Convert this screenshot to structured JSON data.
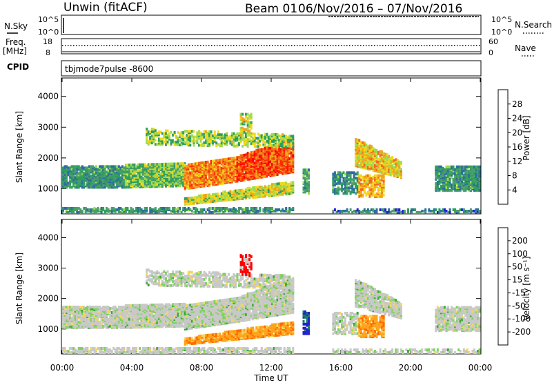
{
  "header": {
    "title": "Unwin (fitACF)",
    "beam": "Beam 01",
    "date_range": "06/Nov/2016 – 07/Nov/2016"
  },
  "strips": {
    "nsky_label": "N.Sky",
    "nsky_ticks": [
      "10^5",
      "10^0"
    ],
    "nsky_right_ticks": [
      "10^5",
      "10^0"
    ],
    "nsearch_label": "N.Search",
    "freq_label_1": "Freq.",
    "freq_label_2": "[MHz]",
    "freq_ticks": [
      "18",
      "8"
    ],
    "nave_label": "Nave",
    "nave_ticks": [
      "60",
      "0"
    ],
    "cpid_label": "CPID",
    "cpid_value": "tbjmode7pulse  -8600"
  },
  "colors": {
    "power_scale": [
      "#0000ff",
      "#2222cc",
      "#2e6e9e",
      "#4f9f6b",
      "#2e9e5e",
      "#9edb4f",
      "#f2d81c",
      "#f2a31c",
      "#f26a1c",
      "#ff2a00",
      "#ff0000"
    ],
    "velocity_scale": [
      "#ff0000",
      "#ff6a00",
      "#ffa31c",
      "#f2d860",
      "#c8c8c8",
      "#7fd15f",
      "#3aa83a",
      "#1a7a6a",
      "#2222cc"
    ]
  },
  "chart_data": [
    {
      "type": "heatmap",
      "panel": "power",
      "ylabel": "Slant Range [km]",
      "xlabel": "",
      "yticks": [
        "1000",
        "2000",
        "3000",
        "4000"
      ],
      "xticks": [
        "00:00",
        "04:00",
        "08:00",
        "12:00",
        "16:00",
        "20:00",
        "00:00"
      ],
      "ylim": [
        180,
        4600
      ],
      "xlim": [
        "00:00",
        "24:00"
      ],
      "colorbar": {
        "label": "Power [dB]",
        "ticks": [
          "28",
          "24",
          "20",
          "16",
          "12",
          "8",
          "4"
        ],
        "range": [
          0,
          32
        ]
      }
    },
    {
      "type": "heatmap",
      "panel": "velocity",
      "ylabel": "Slant Range [km]",
      "xlabel": "Time UT",
      "yticks": [
        "1000",
        "2000",
        "3000",
        "4000"
      ],
      "xticks": [
        "00:00",
        "04:00",
        "08:00",
        "12:00",
        "16:00",
        "20:00",
        "00:00"
      ],
      "ylim": [
        180,
        4600
      ],
      "xlim": [
        "00:00",
        "24:00"
      ],
      "colorbar": {
        "label": "Velocity [m s⁻¹]",
        "ticks": [
          "200",
          "100",
          "50",
          "15",
          "-15",
          "-50",
          "-100",
          "-200"
        ],
        "range": [
          -250,
          250
        ]
      }
    }
  ]
}
